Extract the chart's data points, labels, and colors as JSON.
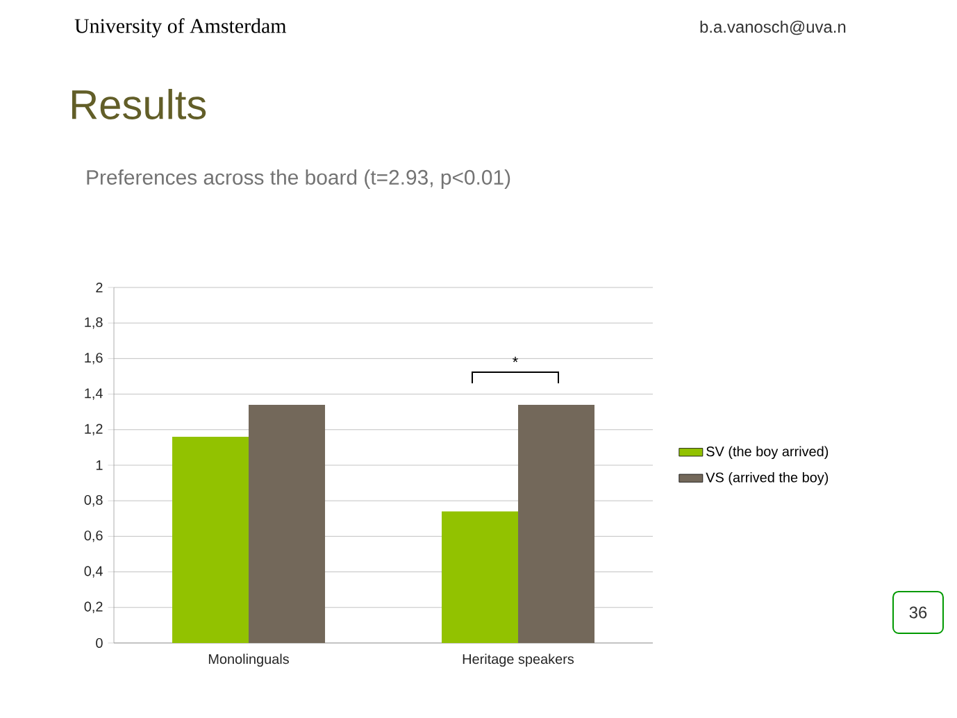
{
  "chart_data": {
    "type": "bar",
    "title": "Results",
    "subtitle": "Preferences across the board (t=2.93, p<0.01)",
    "categories": [
      "Monolinguals",
      "Heritage speakers"
    ],
    "series": [
      {
        "name": "SV (the boy arrived)",
        "color": "#92c200",
        "values": [
          1.16,
          0.74
        ]
      },
      {
        "name": "VS (arrived the boy)",
        "color": "#73685a",
        "values": [
          1.34,
          1.34
        ]
      }
    ],
    "ylim": [
      0,
      2
    ],
    "yticks": [
      0,
      {
        "value": 0.2,
        "label": "0,2"
      },
      {
        "value": 0.4,
        "label": "0,4"
      },
      {
        "value": 0.6,
        "label": "0,6"
      },
      {
        "value": 0.8,
        "label": "0,8"
      },
      1,
      {
        "value": 1.2,
        "label": "1,2"
      },
      {
        "value": 1.4,
        "label": "1,4"
      },
      {
        "value": 1.6,
        "label": "1,6"
      },
      {
        "value": 1.8,
        "label": "1,8"
      },
      2
    ],
    "grid": "y",
    "legend": "right",
    "annotations": [
      "University of Amsterdam",
      "b.a.vanosch@uva.n",
      "36",
      "*"
    ]
  }
}
